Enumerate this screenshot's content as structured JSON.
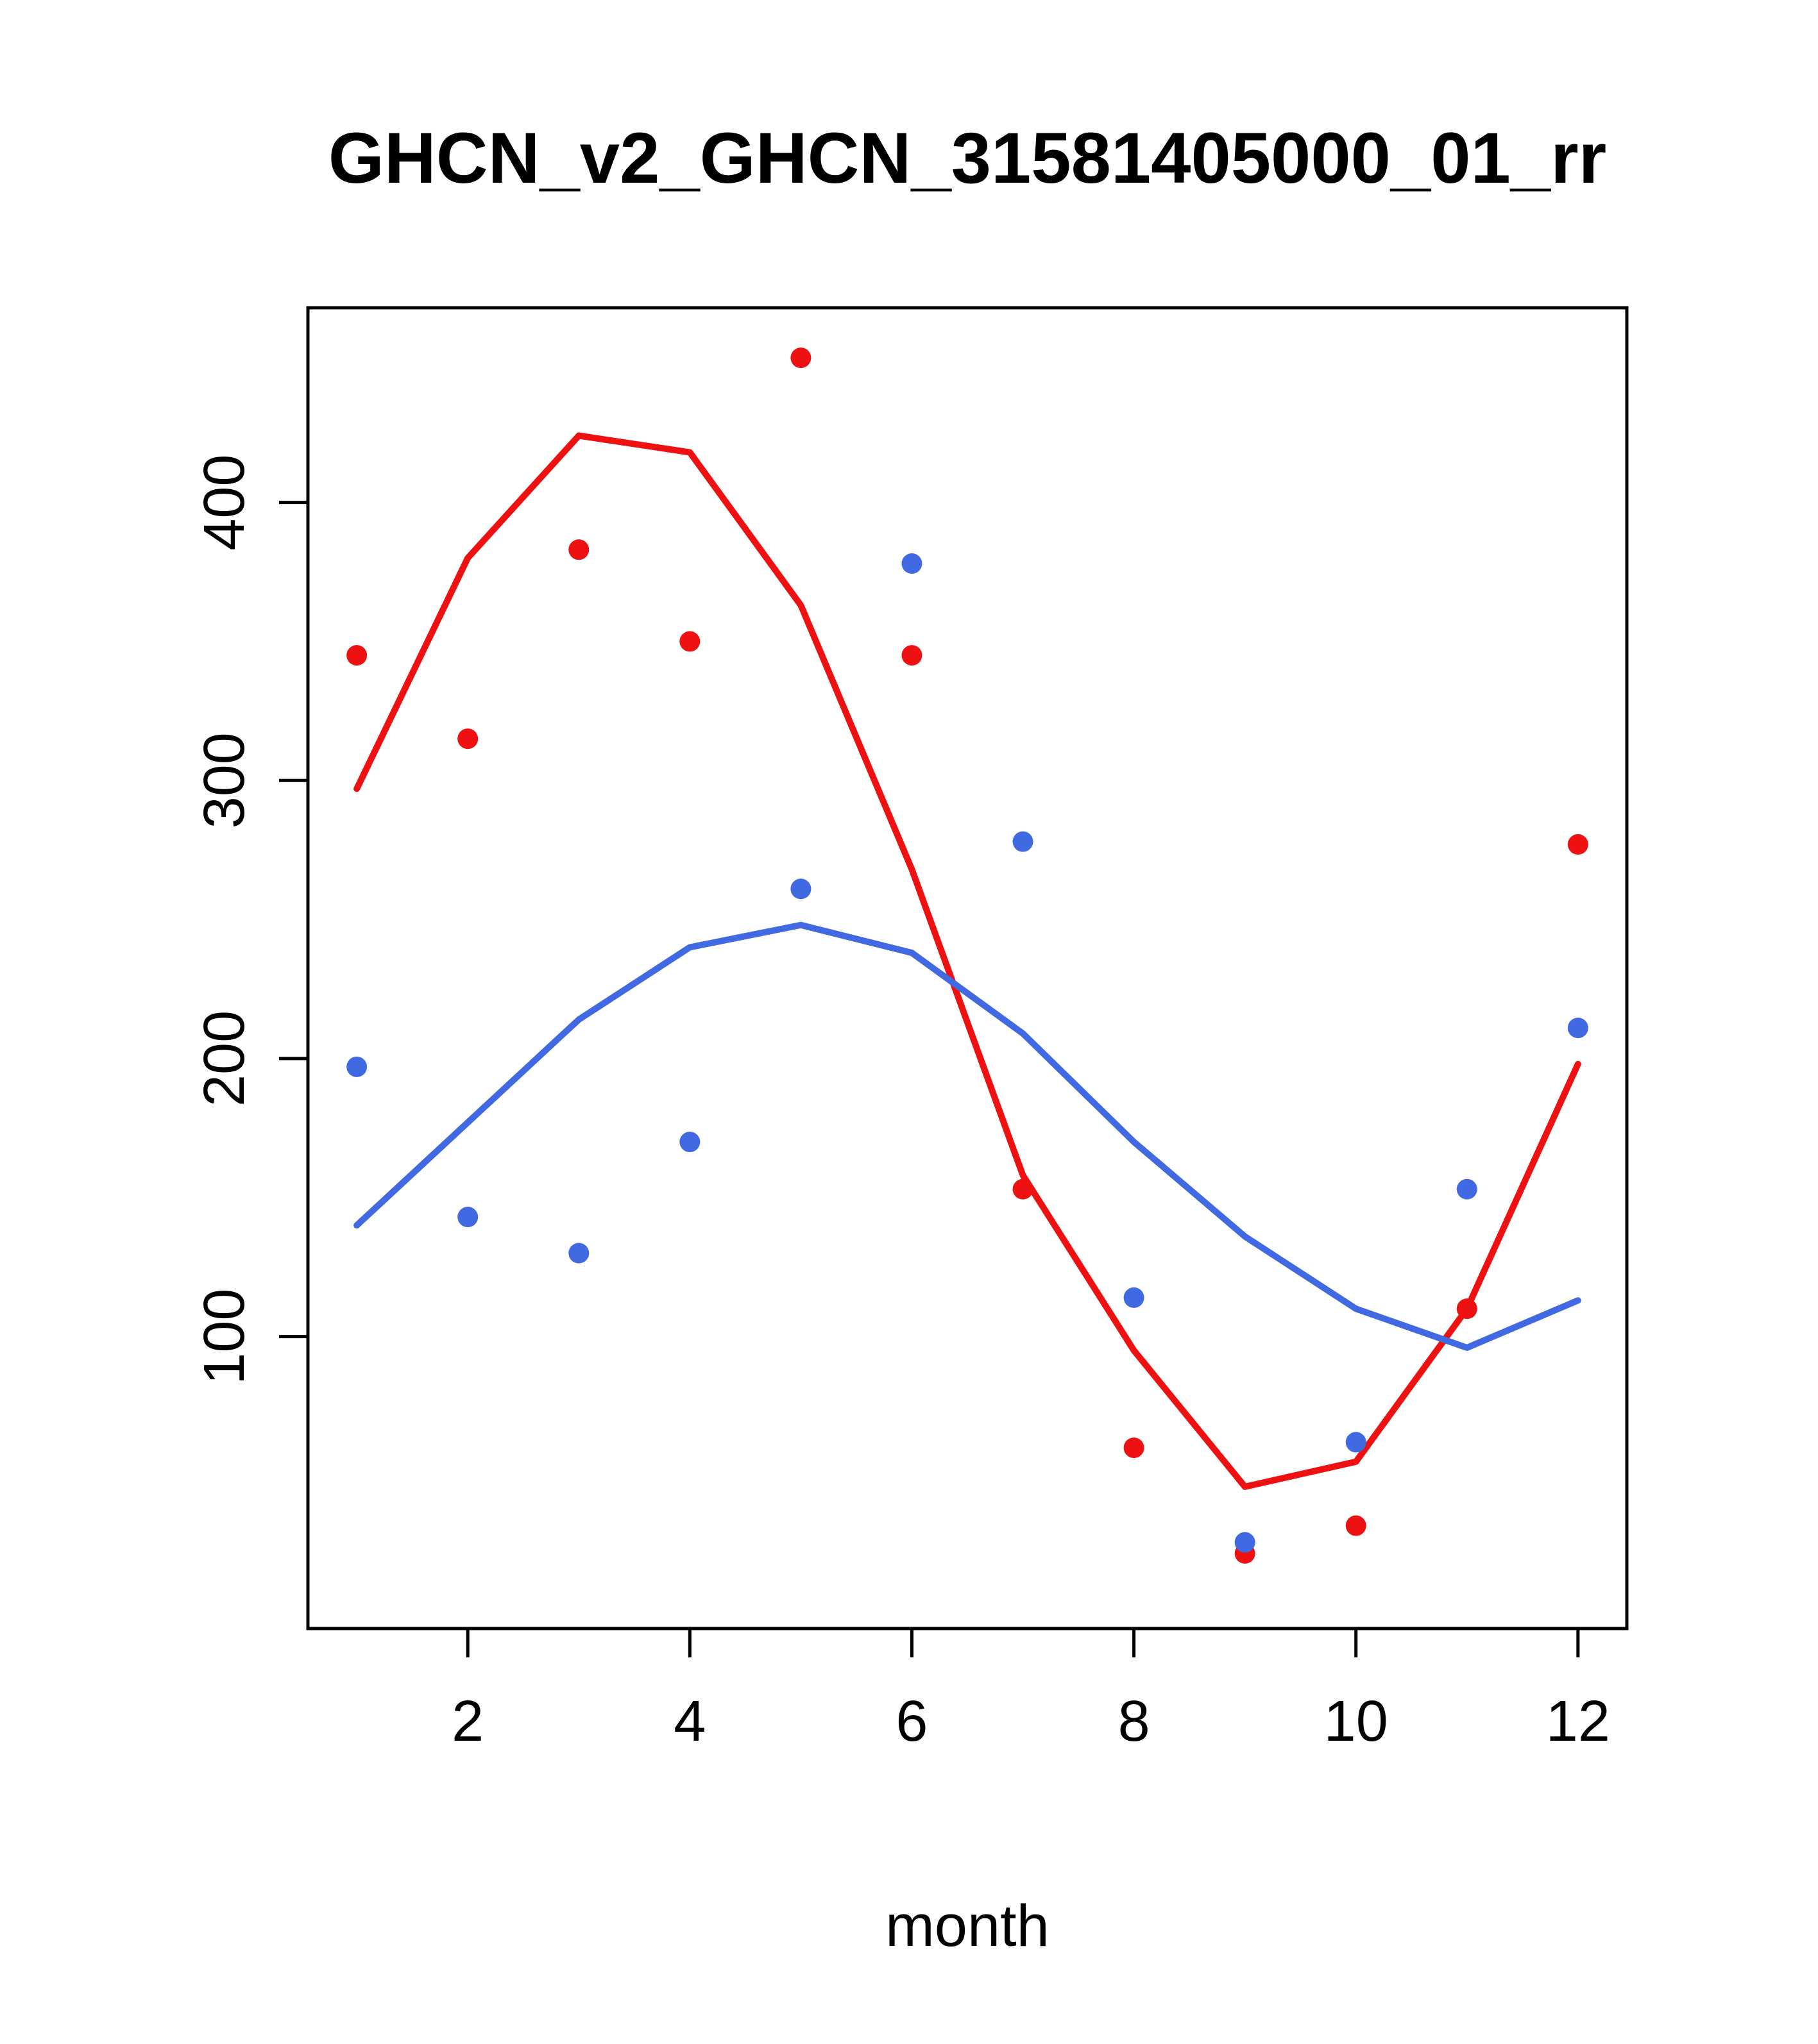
{
  "chart_data": {
    "type": "line",
    "title": "GHCN_v2_GHCN_31581405000_01_rr",
    "xlabel": "month",
    "ylabel": "",
    "x": [
      1,
      2,
      3,
      4,
      5,
      6,
      7,
      8,
      9,
      10,
      11,
      12
    ],
    "xlim": [
      0.56,
      12.44
    ],
    "ylim": [
      -5,
      470
    ],
    "x_ticks": [
      2,
      4,
      6,
      8,
      10,
      12
    ],
    "y_ticks": [
      100,
      200,
      300,
      400
    ],
    "grid": false,
    "legend": false,
    "colors": {
      "red": "#ee1111",
      "blue": "#4169e1"
    },
    "series": [
      {
        "name": "red-line",
        "type": "line",
        "color": "#ee1111",
        "values": [
          297,
          380,
          424,
          418,
          363,
          268,
          158,
          95,
          46,
          55,
          110,
          198
        ]
      },
      {
        "name": "blue-line",
        "type": "line",
        "color": "#4169e1",
        "values": [
          140,
          177,
          214,
          240,
          248,
          238,
          209,
          170,
          136,
          110,
          96,
          113
        ]
      },
      {
        "name": "red-points",
        "type": "scatter",
        "color": "#ee1111",
        "values": [
          345,
          315,
          383,
          350,
          452,
          345,
          153,
          60,
          22,
          32,
          110,
          277
        ]
      },
      {
        "name": "blue-points",
        "type": "scatter",
        "color": "#4169e1",
        "values": [
          197,
          143,
          130,
          170,
          261,
          378,
          278,
          114,
          26,
          62,
          153,
          211
        ]
      }
    ]
  }
}
